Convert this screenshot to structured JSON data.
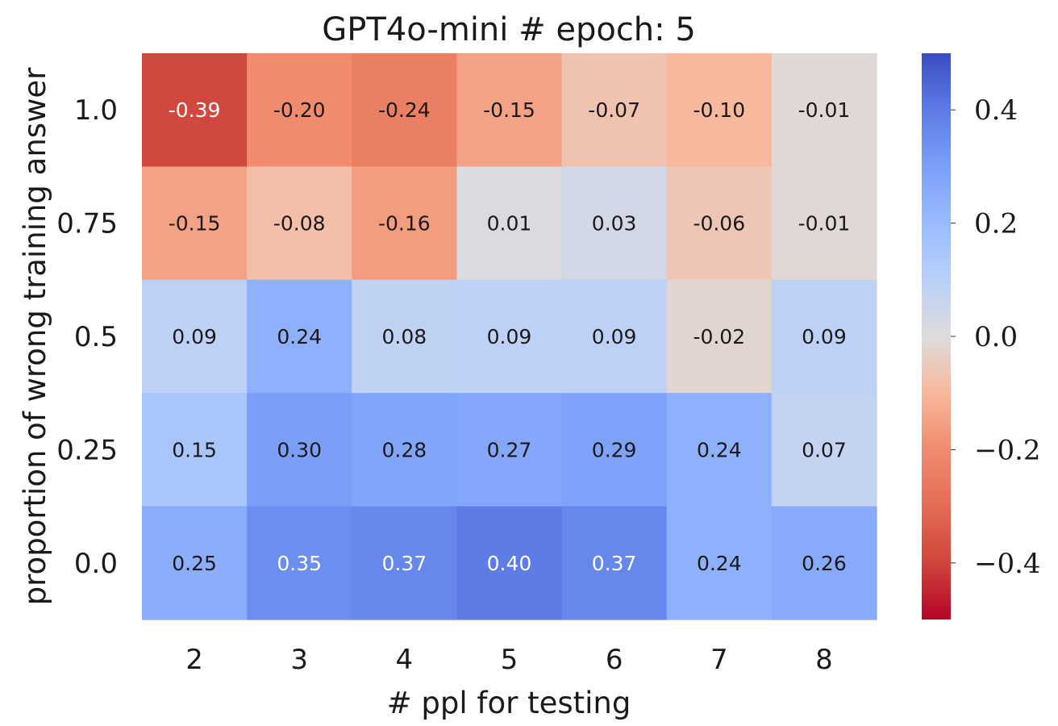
{
  "chart_data": {
    "type": "heatmap",
    "title": "GPT4o-mini # epoch: 5",
    "xlabel": "# ppl for testing",
    "ylabel": "proportion of wrong training answer",
    "x_categories": [
      "2",
      "3",
      "4",
      "5",
      "6",
      "7",
      "8"
    ],
    "y_categories": [
      "1.0",
      "0.75",
      "0.5",
      "0.25",
      "0.0"
    ],
    "values": [
      [
        -0.39,
        -0.2,
        -0.24,
        -0.15,
        -0.07,
        -0.1,
        -0.01
      ],
      [
        -0.15,
        -0.08,
        -0.16,
        0.01,
        0.03,
        -0.06,
        -0.01
      ],
      [
        0.09,
        0.24,
        0.08,
        0.09,
        0.09,
        -0.02,
        0.09
      ],
      [
        0.15,
        0.3,
        0.28,
        0.27,
        0.29,
        0.24,
        0.07
      ],
      [
        0.25,
        0.35,
        0.37,
        0.4,
        0.37,
        0.24,
        0.26
      ]
    ],
    "labels": [
      [
        "-0.39",
        "-0.20",
        "-0.24",
        "-0.15",
        "-0.07",
        "-0.10",
        "-0.01"
      ],
      [
        "-0.15",
        "-0.08",
        "-0.16",
        "0.01",
        "0.03",
        "-0.06",
        "-0.01"
      ],
      [
        "0.09",
        "0.24",
        "0.08",
        "0.09",
        "0.09",
        "-0.02",
        "0.09"
      ],
      [
        "0.15",
        "0.30",
        "0.28",
        "0.27",
        "0.29",
        "0.24",
        "0.07"
      ],
      [
        "0.25",
        "0.35",
        "0.37",
        "0.40",
        "0.37",
        "0.24",
        "0.26"
      ]
    ],
    "colormap": "coolwarm",
    "vmin": -0.5,
    "vmax": 0.5,
    "colorbar_ticks": [
      0.4,
      0.2,
      0.0,
      -0.2,
      -0.4
    ],
    "colorbar_tick_labels": [
      "0.4",
      "0.2",
      "0.0",
      "−0.2",
      "−0.4"
    ]
  }
}
